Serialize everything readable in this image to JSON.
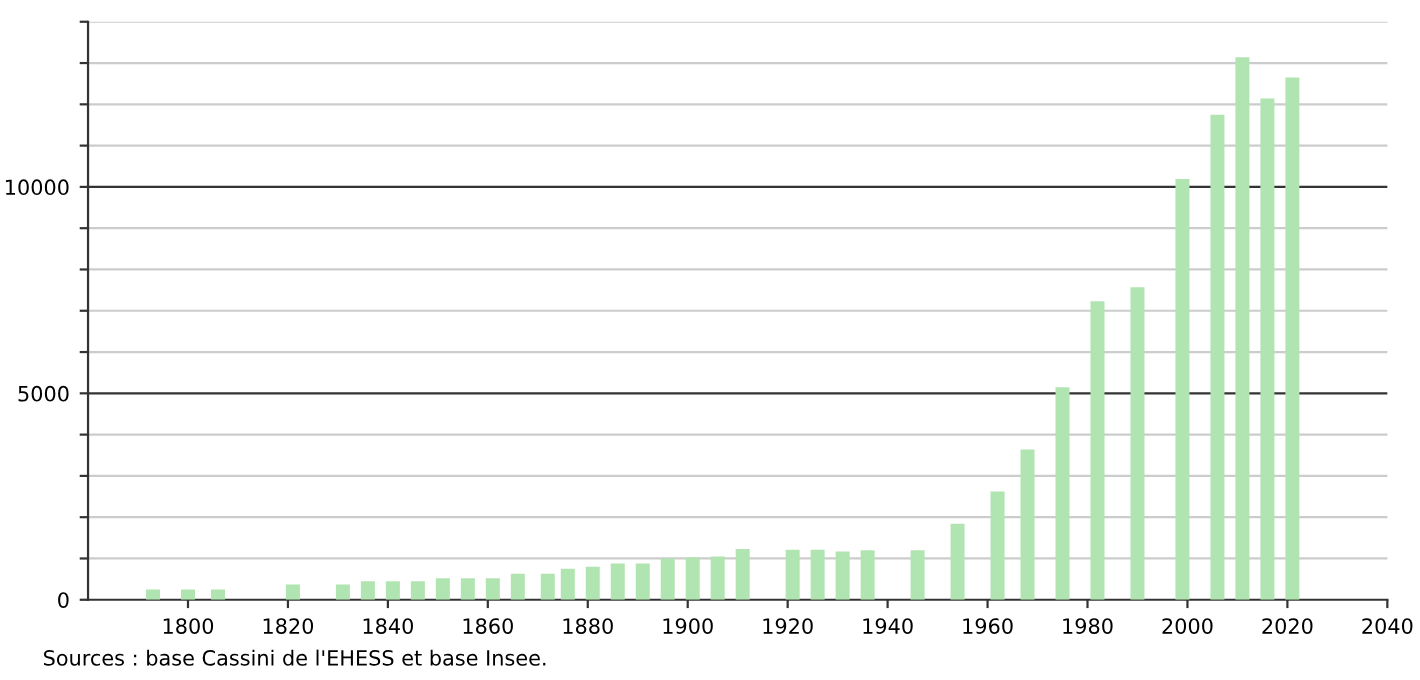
{
  "chart_data": {
    "type": "bar",
    "x": [
      1793,
      1800,
      1806,
      1821,
      1831,
      1836,
      1841,
      1846,
      1851,
      1856,
      1861,
      1866,
      1872,
      1876,
      1881,
      1886,
      1891,
      1896,
      1901,
      1906,
      1911,
      1921,
      1926,
      1931,
      1936,
      1946,
      1954,
      1962,
      1968,
      1975,
      1982,
      1990,
      1999,
      2006,
      2011,
      2016,
      2021
    ],
    "values": [
      250,
      250,
      250,
      370,
      370,
      450,
      450,
      450,
      520,
      520,
      520,
      630,
      630,
      750,
      800,
      880,
      880,
      1000,
      1030,
      1050,
      1230,
      1210,
      1210,
      1170,
      1200,
      1200,
      1840,
      2620,
      3640,
      5150,
      7230,
      7570,
      10190,
      11750,
      13140,
      12140,
      12650
    ],
    "color": "#b0e4b0",
    "xlim": [
      1780,
      2040
    ],
    "xticks": [
      1800,
      1820,
      1840,
      1860,
      1880,
      1900,
      1920,
      1940,
      1960,
      1980,
      2000,
      2020,
      2040
    ],
    "ylim": [
      0,
      14000
    ],
    "yticks": [
      0,
      {
        "value": 1000,
        "label": null
      },
      {
        "value": 2000,
        "label": null
      },
      {
        "value": 3000,
        "label": null
      },
      {
        "value": 4000,
        "label": null
      },
      5000,
      {
        "value": 6000,
        "label": null
      },
      {
        "value": 7000,
        "label": null
      },
      {
        "value": 8000,
        "label": null
      },
      {
        "value": 9000,
        "label": null
      },
      10000,
      {
        "value": 11000,
        "label": null
      },
      {
        "value": 12000,
        "label": null
      },
      {
        "value": 13000,
        "label": null
      },
      {
        "value": 14000,
        "label": null
      }
    ],
    "grid": "y",
    "annotations": [
      "Sources : base Cassini de l'EHESS et base Insee."
    ]
  }
}
